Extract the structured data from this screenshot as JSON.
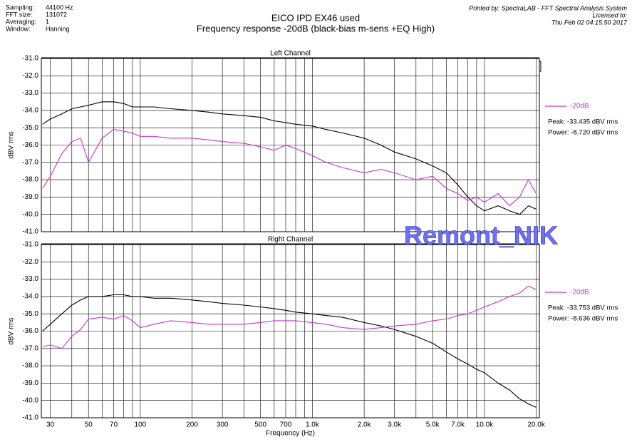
{
  "header": {
    "info": [
      [
        "Sampling:",
        "44100 Hz"
      ],
      [
        "FFT size:",
        "131072"
      ],
      [
        "Averaging:",
        "1"
      ],
      [
        "Window:",
        "Hanning"
      ]
    ],
    "title": "EICO IPD EX46 used",
    "subtitle": "Frequency response -20dB (black-bias m-sens +EQ High)",
    "printed_by": "Printed by: SpectraLAB - FFT Spectral Analysis System",
    "licensed": "Licensed to:",
    "date": "Thu Feb 02 04:15:50 2017"
  },
  "watermark": "Remont_NIK",
  "chart_data": [
    {
      "type": "line",
      "title": "Left Channel",
      "ylabel": "dBV rms",
      "xlog": true,
      "xlim": [
        26.6,
        20850
      ],
      "ylim": [
        -41,
        -31
      ],
      "yticks": [
        {
          "value": -31,
          "label": "-31.0"
        },
        {
          "value": -32,
          "label": "-32.0"
        },
        {
          "value": -33,
          "label": "-33.0"
        },
        {
          "value": -34,
          "label": "-34.0"
        },
        {
          "value": -35,
          "label": "-35.0"
        },
        {
          "value": -36,
          "label": "-36.0"
        },
        {
          "value": -37,
          "label": "-37.0"
        },
        {
          "value": -38,
          "label": "-38.0"
        },
        {
          "value": -39,
          "label": "-39.0"
        },
        {
          "value": -40,
          "label": "-40.0"
        },
        {
          "value": -41,
          "label": "-41.0"
        }
      ],
      "xgrid": [
        30,
        40,
        50,
        60,
        70,
        80,
        90,
        100,
        200,
        300,
        400,
        500,
        600,
        700,
        800,
        900,
        1000,
        2000,
        3000,
        4000,
        5000,
        6000,
        7000,
        8000,
        9000,
        10000,
        20000
      ],
      "x": [
        27,
        30,
        35,
        40,
        45,
        50,
        60,
        70,
        80,
        90,
        100,
        120,
        150,
        200,
        250,
        300,
        400,
        500,
        600,
        700,
        800,
        1000,
        1200,
        1500,
        2000,
        2500,
        3000,
        4000,
        5000,
        6000,
        7000,
        8000,
        9000,
        10000,
        12000,
        14000,
        16000,
        18000,
        20000
      ],
      "series": [
        {
          "color": "#000000",
          "values": [
            -34.8,
            -34.5,
            -34.2,
            -33.9,
            -33.8,
            -33.7,
            -33.5,
            -33.5,
            -33.6,
            -33.8,
            -33.8,
            -33.8,
            -33.9,
            -34.0,
            -34.1,
            -34.2,
            -34.3,
            -34.4,
            -34.6,
            -34.7,
            -34.8,
            -34.9,
            -35.1,
            -35.3,
            -35.6,
            -36.0,
            -36.4,
            -36.8,
            -37.2,
            -37.6,
            -38.3,
            -39.0,
            -39.5,
            -39.8,
            -39.5,
            -39.8,
            -40.0,
            -39.5,
            -39.7
          ]
        },
        {
          "name": "-20dB",
          "color": "#cc33cc",
          "values": [
            -38.5,
            -37.8,
            -36.5,
            -35.8,
            -35.6,
            -37.0,
            -35.6,
            -35.1,
            -35.2,
            -35.3,
            -35.5,
            -35.5,
            -35.6,
            -35.6,
            -35.7,
            -35.8,
            -35.9,
            -36.1,
            -36.3,
            -36.0,
            -36.2,
            -36.6,
            -37.0,
            -37.3,
            -37.6,
            -37.4,
            -37.6,
            -38.0,
            -37.8,
            -38.5,
            -38.8,
            -39.2,
            -39.0,
            -39.3,
            -38.8,
            -39.5,
            -39.0,
            -38.0,
            -38.8
          ]
        }
      ],
      "legend": "right",
      "stats": [
        "Peak: -33.435 dBV rms",
        "Power: -8.720 dBV rms"
      ]
    },
    {
      "type": "line",
      "title": "Right Channel",
      "ylabel": "dBV rms",
      "xlabel": "Frequency (Hz)",
      "xlog": true,
      "xlim": [
        26.6,
        20850
      ],
      "ylim": [
        -41,
        -31
      ],
      "yticks": [
        {
          "value": -31,
          "label": "-31.0"
        },
        {
          "value": -32,
          "label": "-32.0"
        },
        {
          "value": -33,
          "label": "-33.0"
        },
        {
          "value": -34,
          "label": "-34.0"
        },
        {
          "value": -35,
          "label": "-35.0"
        },
        {
          "value": -36,
          "label": "-36.0"
        },
        {
          "value": -37,
          "label": "-37.0"
        },
        {
          "value": -38,
          "label": "-38.0"
        },
        {
          "value": -39,
          "label": "-39.0"
        },
        {
          "value": -40,
          "label": "-40.0"
        },
        {
          "value": -41,
          "label": "-41.0"
        }
      ],
      "xgrid": [
        40,
        60,
        80,
        90,
        400,
        600,
        800,
        900,
        4000,
        6000,
        8000,
        9000
      ],
      "xticks": [
        30,
        50,
        70,
        100,
        200,
        300,
        500,
        700,
        {
          "value": 1000,
          "label": "1.0k"
        },
        {
          "value": 2000,
          "label": "2.0k"
        },
        {
          "value": 3000,
          "label": "3.0k"
        },
        {
          "value": 5000,
          "label": "5.0k"
        },
        {
          "value": 7000,
          "label": "7.0k"
        },
        {
          "value": 10000,
          "label": "10.0k"
        },
        {
          "value": 20000,
          "label": "20.0k"
        }
      ],
      "x": [
        27,
        30,
        35,
        40,
        45,
        50,
        60,
        70,
        80,
        90,
        100,
        120,
        150,
        200,
        250,
        300,
        400,
        500,
        600,
        700,
        800,
        1000,
        1200,
        1500,
        2000,
        2500,
        3000,
        4000,
        5000,
        6000,
        7000,
        8000,
        9000,
        10000,
        12000,
        14000,
        16000,
        18000,
        20000
      ],
      "series": [
        {
          "color": "#000000",
          "values": [
            -36.0,
            -35.6,
            -35.0,
            -34.5,
            -34.2,
            -34.0,
            -34.0,
            -33.9,
            -33.9,
            -34.0,
            -34.0,
            -34.1,
            -34.1,
            -34.2,
            -34.3,
            -34.4,
            -34.5,
            -34.6,
            -34.7,
            -34.8,
            -34.9,
            -35.0,
            -35.1,
            -35.2,
            -35.5,
            -35.7,
            -35.9,
            -36.3,
            -36.7,
            -37.2,
            -37.6,
            -37.9,
            -38.2,
            -38.4,
            -39.0,
            -39.4,
            -39.9,
            -40.2,
            -40.4
          ]
        },
        {
          "name": "-20dB",
          "color": "#cc33cc",
          "values": [
            -36.9,
            -36.8,
            -37.0,
            -36.3,
            -35.9,
            -35.3,
            -35.2,
            -35.3,
            -35.1,
            -35.4,
            -35.8,
            -35.6,
            -35.4,
            -35.5,
            -35.6,
            -35.6,
            -35.6,
            -35.5,
            -35.4,
            -35.4,
            -35.4,
            -35.5,
            -35.6,
            -35.8,
            -35.9,
            -35.8,
            -35.7,
            -35.6,
            -35.4,
            -35.3,
            -35.1,
            -35.0,
            -34.8,
            -34.6,
            -34.3,
            -34.0,
            -33.8,
            -33.4,
            -33.6
          ]
        }
      ],
      "legend": "right",
      "stats": [
        "Peak: -33.753 dBV rms",
        "Power: -8.636 dBV rms"
      ]
    }
  ]
}
